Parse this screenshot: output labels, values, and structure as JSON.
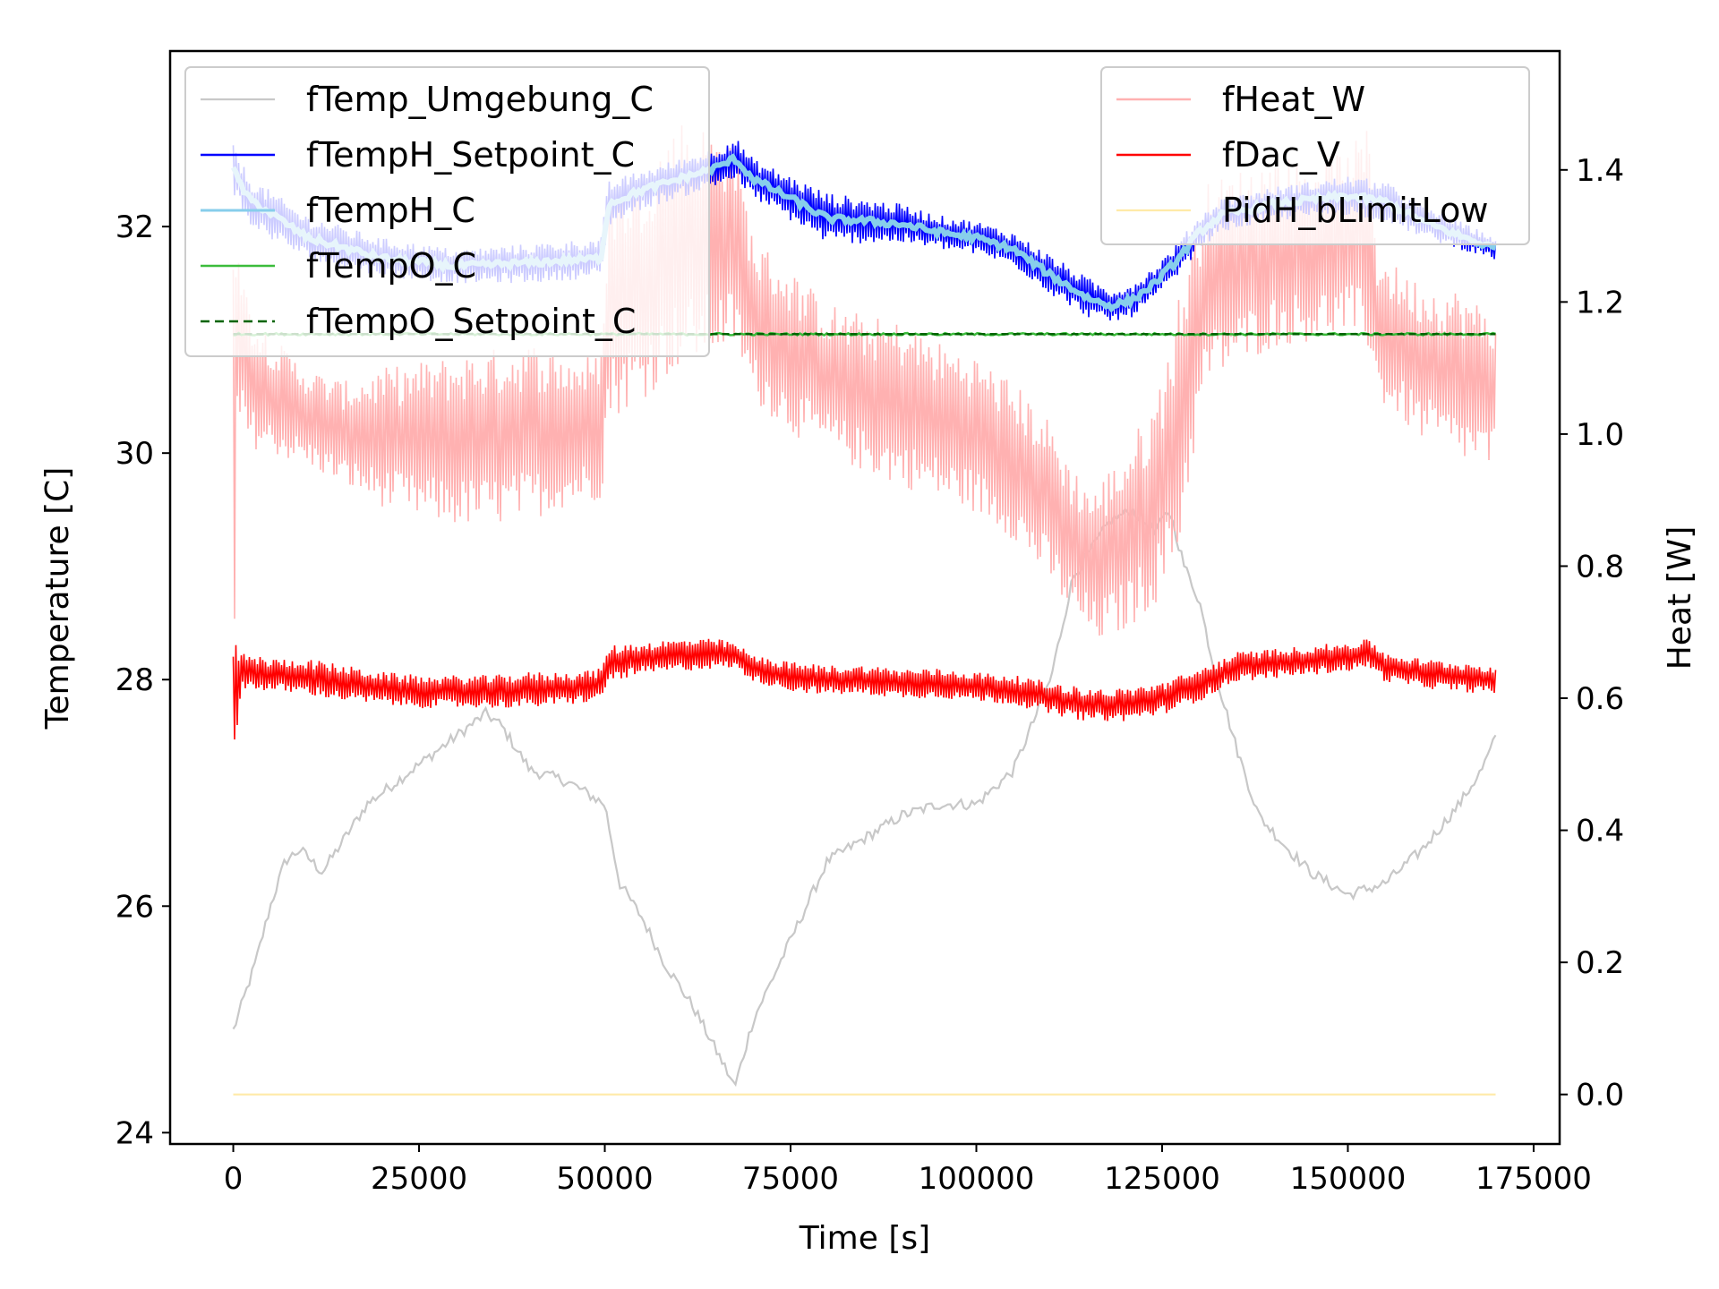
{
  "chart_data": {
    "type": "line",
    "title": "",
    "xlabel": "Time [s]",
    "ylabel_left": "Temperature [C]",
    "ylabel_right": "Heat [W]",
    "xlim": [
      -8500,
      178500
    ],
    "ylim_left": [
      23.9,
      33.55
    ],
    "ylim_right": [
      -0.075,
      1.58
    ],
    "x_ticks": [
      0,
      25000,
      50000,
      75000,
      100000,
      125000,
      150000,
      175000
    ],
    "y_left_ticks": [
      24,
      26,
      28,
      30,
      32
    ],
    "y_right_ticks": [
      0.0,
      0.2,
      0.4,
      0.6,
      0.8,
      1.0,
      1.2,
      1.4
    ],
    "y_right_tick_labels": [
      "0.0",
      "0.2",
      "0.4",
      "0.6",
      "0.8",
      "1.0",
      "1.2",
      "1.4"
    ],
    "grid": false,
    "legends": [
      {
        "position": "top-left",
        "entries": [
          "fTemp_Umgebung_C",
          "fTempH_Setpoint_C",
          "fTempH_C",
          "fTempO_C",
          "fTempO_Setpoint_C"
        ]
      },
      {
        "position": "top-right",
        "entries": [
          "fHeat_W",
          "fDac_V",
          "PidH_bLimitLow"
        ]
      }
    ],
    "series": [
      {
        "name": "fTemp_Umgebung_C",
        "axis": "left",
        "color": "#c8c8c8",
        "style": "solid",
        "width": 2.2,
        "noise": 0.05,
        "x": [
          0,
          1000,
          3000,
          5000,
          7000,
          9000,
          12000,
          15000,
          18000,
          22000,
          26000,
          30000,
          34000,
          36000,
          40000,
          45000,
          50000,
          52000,
          55000,
          58000,
          62000,
          66000,
          67500,
          70000,
          75000,
          80000,
          90000,
          95000,
          100000,
          105000,
          110000,
          113000,
          115000,
          118000,
          121000,
          124000,
          126000,
          128000,
          130000,
          132000,
          135000,
          138000,
          142000,
          145000,
          150000,
          155000,
          160000,
          165000,
          168000,
          170000
        ],
        "y": [
          24.9,
          25.1,
          25.5,
          26.0,
          26.4,
          26.5,
          26.3,
          26.6,
          26.9,
          27.1,
          27.3,
          27.5,
          27.7,
          27.6,
          27.2,
          27.1,
          26.9,
          26.2,
          25.9,
          25.5,
          25.1,
          24.6,
          24.4,
          25.0,
          25.7,
          26.4,
          26.8,
          26.9,
          26.9,
          27.2,
          28.0,
          28.9,
          29.1,
          29.4,
          29.5,
          29.3,
          29.5,
          29.0,
          28.7,
          28.1,
          27.4,
          26.8,
          26.5,
          26.3,
          26.1,
          26.2,
          26.5,
          26.9,
          27.2,
          27.5
        ]
      },
      {
        "name": "fHeat_W",
        "axis": "right",
        "color": "#ffb1b1",
        "style": "band",
        "x": [
          0,
          500,
          2000,
          5000,
          10000,
          15000,
          20000,
          25000,
          30000,
          35000,
          40000,
          45000,
          49500,
          50500,
          55000,
          60000,
          65000,
          67500,
          70000,
          75000,
          80000,
          85000,
          90000,
          95000,
          100000,
          105000,
          110000,
          113000,
          116000,
          120000,
          124000,
          127000,
          129000,
          131000,
          135000,
          140000,
          145000,
          150000,
          153000,
          154000,
          157000,
          160000,
          165000,
          170000
        ],
        "upper": [
          1.48,
          1.35,
          1.2,
          1.15,
          1.1,
          1.08,
          1.1,
          1.11,
          1.12,
          1.13,
          1.14,
          1.12,
          1.12,
          1.38,
          1.4,
          1.48,
          1.46,
          1.45,
          1.3,
          1.25,
          1.2,
          1.18,
          1.17,
          1.14,
          1.12,
          1.08,
          1.02,
          0.95,
          0.92,
          0.98,
          1.05,
          1.2,
          1.3,
          1.38,
          1.4,
          1.42,
          1.42,
          1.43,
          1.47,
          1.28,
          1.25,
          1.23,
          1.22,
          1.18
        ],
        "lower": [
          0.27,
          1.0,
          0.98,
          0.97,
          0.95,
          0.92,
          0.89,
          0.87,
          0.86,
          0.86,
          0.87,
          0.89,
          0.9,
          1.02,
          1.05,
          1.1,
          1.12,
          1.13,
          1.05,
          1.0,
          0.97,
          0.94,
          0.92,
          0.9,
          0.88,
          0.84,
          0.77,
          0.72,
          0.68,
          0.7,
          0.74,
          0.8,
          0.95,
          1.07,
          1.1,
          1.13,
          1.14,
          1.15,
          1.12,
          1.05,
          1.02,
          0.99,
          0.96,
          0.94
        ]
      },
      {
        "name": "PidH_bLimitLow",
        "axis": "right",
        "color": "#ffeaa8",
        "style": "solid",
        "width": 2.2,
        "x": [
          0,
          170000
        ],
        "y": [
          0.0,
          0.0
        ]
      },
      {
        "name": "fTempH_Setpoint_C",
        "axis": "left",
        "color": "#0000ff",
        "style": "band",
        "x": [
          0,
          2000,
          10000,
          20000,
          30000,
          40000,
          49500,
          50500,
          55000,
          60000,
          65000,
          67500,
          70000,
          75000,
          80000,
          85000,
          90000,
          95000,
          100000,
          105000,
          110000,
          115000,
          118000,
          121000,
          124000,
          127000,
          130000,
          133000,
          140000,
          150000,
          155000,
          160000,
          165000,
          170000
        ],
        "upper": [
          32.75,
          32.45,
          32.1,
          31.9,
          31.8,
          31.85,
          31.9,
          32.4,
          32.5,
          32.6,
          32.7,
          32.8,
          32.6,
          32.45,
          32.3,
          32.25,
          32.2,
          32.1,
          32.05,
          31.95,
          31.75,
          31.55,
          31.45,
          31.5,
          31.65,
          31.85,
          32.1,
          32.25,
          32.35,
          32.45,
          32.4,
          32.2,
          32.05,
          31.9
        ],
        "lower": [
          32.3,
          32.0,
          31.7,
          31.55,
          31.5,
          31.5,
          31.55,
          32.0,
          32.15,
          32.25,
          32.35,
          32.4,
          32.25,
          32.05,
          31.85,
          31.85,
          31.85,
          31.8,
          31.75,
          31.65,
          31.4,
          31.2,
          31.15,
          31.2,
          31.35,
          31.55,
          31.8,
          31.95,
          32.05,
          32.1,
          32.05,
          31.9,
          31.8,
          31.7
        ]
      },
      {
        "name": "fTempH_C",
        "axis": "left",
        "color": "#87ceeb",
        "style": "solid",
        "width": 6,
        "noise": 0.03,
        "x": [
          0,
          2000,
          10000,
          20000,
          30000,
          40000,
          49500,
          50500,
          55000,
          60000,
          65000,
          67500,
          70000,
          75000,
          80000,
          85000,
          90000,
          95000,
          100000,
          105000,
          110000,
          115000,
          118000,
          121000,
          124000,
          127000,
          130000,
          133000,
          140000,
          150000,
          155000,
          160000,
          165000,
          170000
        ],
        "y": [
          32.5,
          32.25,
          31.9,
          31.72,
          31.65,
          31.68,
          31.72,
          32.2,
          32.32,
          32.42,
          32.52,
          32.6,
          32.42,
          32.25,
          32.07,
          32.05,
          32.02,
          31.95,
          31.9,
          31.8,
          31.57,
          31.37,
          31.3,
          31.35,
          31.5,
          31.7,
          31.95,
          32.1,
          32.2,
          32.27,
          32.22,
          32.05,
          31.92,
          31.8
        ]
      },
      {
        "name": "fTempO_C",
        "axis": "left",
        "color": "#3cbc3c",
        "style": "solid",
        "width": 2.5,
        "noise": 0.01,
        "x": [
          0,
          170000
        ],
        "y": [
          31.05,
          31.05
        ]
      },
      {
        "name": "fTempO_Setpoint_C",
        "axis": "left",
        "color": "#006400",
        "style": "dashed",
        "width": 2.5,
        "x": [
          0,
          170000
        ],
        "y": [
          31.05,
          31.05
        ]
      },
      {
        "name": "fDac_V",
        "axis": "right",
        "color": "#ff0000",
        "style": "band",
        "x": [
          0,
          1000,
          5000,
          10000,
          15000,
          20000,
          25000,
          30000,
          35000,
          40000,
          45000,
          49500,
          50500,
          55000,
          60000,
          65000,
          67500,
          70000,
          75000,
          80000,
          85000,
          90000,
          95000,
          100000,
          105000,
          110000,
          115000,
          120000,
          125000,
          130000,
          135000,
          140000,
          145000,
          150000,
          153000,
          155000,
          160000,
          165000,
          170000
        ],
        "upper": [
          0.7,
          0.67,
          0.66,
          0.66,
          0.65,
          0.64,
          0.635,
          0.635,
          0.635,
          0.64,
          0.64,
          0.645,
          0.68,
          0.685,
          0.69,
          0.69,
          0.685,
          0.665,
          0.655,
          0.65,
          0.65,
          0.645,
          0.645,
          0.64,
          0.635,
          0.625,
          0.615,
          0.615,
          0.625,
          0.645,
          0.67,
          0.675,
          0.68,
          0.685,
          0.69,
          0.67,
          0.66,
          0.655,
          0.65
        ],
        "lower": [
          0.45,
          0.615,
          0.61,
          0.605,
          0.595,
          0.59,
          0.585,
          0.585,
          0.585,
          0.585,
          0.59,
          0.595,
          0.625,
          0.635,
          0.64,
          0.645,
          0.645,
          0.625,
          0.61,
          0.605,
          0.605,
          0.6,
          0.6,
          0.595,
          0.59,
          0.575,
          0.565,
          0.565,
          0.575,
          0.595,
          0.625,
          0.63,
          0.635,
          0.64,
          0.645,
          0.625,
          0.615,
          0.61,
          0.605
        ]
      }
    ]
  }
}
